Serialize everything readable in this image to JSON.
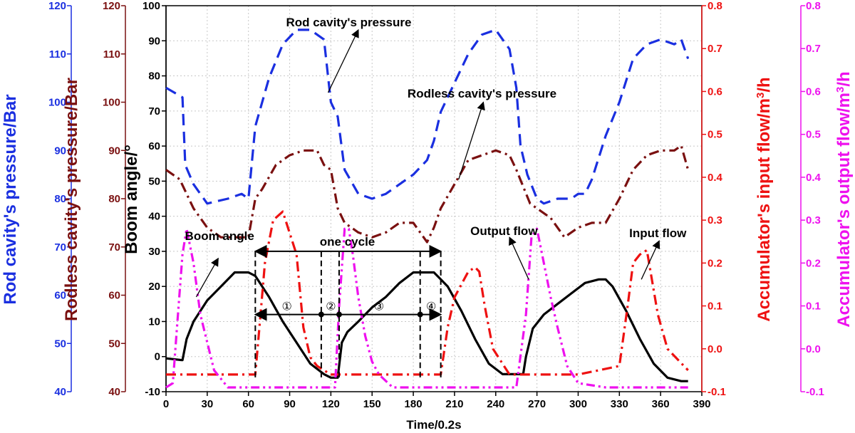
{
  "chart_data": {
    "type": "line",
    "xlabel": "Time/0.2s",
    "xlim": [
      0,
      390
    ],
    "x_ticks": [
      0,
      30,
      60,
      90,
      120,
      150,
      180,
      210,
      240,
      270,
      300,
      330,
      360,
      390
    ],
    "grid": true,
    "axes": {
      "rod_pressure": {
        "label": "Rod cavity's pressure/Bar",
        "ylim": [
          40,
          120
        ],
        "ticks": [
          40,
          50,
          60,
          70,
          80,
          90,
          100,
          110,
          120
        ],
        "color": "#1a2fe0"
      },
      "rodless_pressure": {
        "label": "Rodless cavity's pressure/Bar",
        "ylim": [
          40,
          120
        ],
        "ticks": [
          40,
          50,
          60,
          70,
          80,
          90,
          100,
          110,
          120
        ],
        "color": "#7a1010"
      },
      "boom_angle": {
        "label": "Boom angle/°",
        "ylim": [
          -10,
          100
        ],
        "ticks": [
          -10,
          0,
          10,
          20,
          30,
          40,
          50,
          60,
          70,
          80,
          90,
          100
        ],
        "color": "#000000"
      },
      "input_flow": {
        "label_main": "Accumulator's input flow/m",
        "label_sup": "3",
        "label_end": "/h",
        "ylim": [
          -0.1,
          0.8
        ],
        "ticks": [
          "-0.1",
          "0.0",
          "0.1",
          "0.2",
          "0.3",
          "0.4",
          "0.5",
          "0.6",
          "0.7",
          "0.8"
        ],
        "color": "#ee1111"
      },
      "output_flow": {
        "label_main": "Accumulator's output flow/m",
        "label_sup": "3",
        "label_end": "/h",
        "ylim": [
          -0.1,
          0.8
        ],
        "ticks": [
          "-0.1",
          "0.0",
          "0.1",
          "0.2",
          "0.3",
          "0.4",
          "0.5",
          "0.6",
          "0.7",
          "0.8"
        ],
        "color": "#ee11ee"
      }
    },
    "series": [
      {
        "name": "Rod cavity's pressure",
        "axis": "rod_pressure",
        "style": "dash",
        "x": [
          0,
          12,
          14,
          20,
          30,
          45,
          55,
          60,
          65,
          75,
          85,
          95,
          105,
          115,
          120,
          125,
          130,
          140,
          150,
          160,
          170,
          180,
          190,
          195,
          200,
          210,
          220,
          230,
          240,
          250,
          255,
          258,
          263,
          270,
          275,
          285,
          295,
          300,
          305,
          310,
          320,
          330,
          340,
          350,
          360,
          370,
          375,
          380
        ],
        "y": [
          103,
          101,
          87,
          83,
          79,
          80,
          81,
          80,
          95,
          105,
          112,
          115,
          115,
          113,
          100,
          97,
          86,
          81,
          80,
          81,
          83,
          85,
          88,
          92,
          98,
          104,
          110,
          114,
          115,
          111,
          103,
          91,
          85,
          80,
          79,
          80,
          80,
          81,
          81,
          84,
          93,
          100,
          109,
          112,
          113,
          112,
          113,
          109
        ]
      },
      {
        "name": "Rodless cavity's pressure",
        "axis": "rodless_pressure",
        "style": "dashdot",
        "x": [
          0,
          10,
          15,
          20,
          30,
          40,
          50,
          60,
          65,
          70,
          80,
          90,
          100,
          110,
          115,
          120,
          125,
          130,
          140,
          150,
          160,
          170,
          180,
          190,
          195,
          200,
          210,
          220,
          230,
          240,
          250,
          255,
          265,
          280,
          290,
          300,
          310,
          320,
          330,
          340,
          350,
          360,
          370,
          375,
          380
        ],
        "y": [
          86,
          84,
          81,
          78,
          74,
          72,
          72,
          72,
          80,
          82,
          87,
          89,
          90,
          90,
          87,
          86,
          78,
          75,
          73,
          72,
          73,
          75,
          75,
          71,
          74,
          78,
          83,
          88,
          89,
          90,
          89,
          86,
          79,
          76,
          72,
          74,
          75,
          75,
          80,
          86,
          89,
          90,
          90,
          91,
          86
        ]
      },
      {
        "name": "Boom angle",
        "axis": "boom_angle",
        "style": "solid",
        "x": [
          0,
          12,
          15,
          20,
          30,
          40,
          50,
          55,
          60,
          65,
          75,
          85,
          95,
          105,
          115,
          120,
          125,
          128,
          132,
          140,
          150,
          160,
          170,
          180,
          185,
          195,
          200,
          205,
          215,
          225,
          235,
          245,
          255,
          260,
          262,
          267,
          275,
          285,
          295,
          305,
          315,
          320,
          325,
          335,
          345,
          355,
          365,
          375,
          380
        ],
        "y": [
          -0.5,
          -1,
          5,
          10,
          16,
          20,
          24,
          24,
          24,
          23,
          17,
          10,
          4,
          -2,
          -5,
          -6,
          -6,
          4,
          7,
          10,
          14,
          17,
          21,
          24,
          24,
          24,
          22,
          20,
          13,
          5,
          -2,
          -5,
          -5,
          -5,
          0,
          8,
          12,
          15,
          18,
          21,
          22,
          22,
          20,
          13,
          5,
          -2,
          -6,
          -7,
          -7
        ]
      },
      {
        "name": "Input flow",
        "axis": "input_flow",
        "style": "dashdot",
        "x": [
          0,
          60,
          65,
          68,
          72,
          78,
          85,
          95,
          100,
          105,
          110,
          115,
          120,
          125,
          160,
          198,
          200,
          205,
          210,
          215,
          220,
          225,
          228,
          232,
          238,
          250,
          270,
          300,
          330,
          336,
          340,
          345,
          350,
          358,
          365,
          380
        ],
        "y": [
          -0.06,
          -0.06,
          -0.06,
          0.05,
          0.2,
          0.3,
          0.32,
          0.22,
          0.05,
          -0.02,
          -0.04,
          -0.05,
          -0.06,
          -0.06,
          -0.06,
          -0.06,
          -0.06,
          0.05,
          0.12,
          0.15,
          0.18,
          0.19,
          0.18,
          0.1,
          0.0,
          -0.06,
          -0.06,
          -0.06,
          -0.04,
          0.1,
          0.2,
          0.22,
          0.23,
          0.08,
          0.0,
          -0.05
        ]
      },
      {
        "name": "Output flow",
        "axis": "output_flow",
        "style": "dashdotdot",
        "x": [
          0,
          5,
          8,
          12,
          15,
          20,
          25,
          35,
          45,
          60,
          90,
          120,
          123,
          126,
          130,
          133,
          136,
          140,
          145,
          150,
          155,
          165,
          180,
          210,
          240,
          255,
          262,
          266,
          270,
          275,
          280,
          285,
          292,
          300,
          320,
          350,
          380
        ],
        "y": [
          -0.09,
          -0.08,
          0.05,
          0.22,
          0.28,
          0.2,
          0.08,
          -0.05,
          -0.09,
          -0.09,
          -0.09,
          -0.09,
          -0.09,
          0.1,
          0.28,
          0.28,
          0.22,
          0.12,
          0.03,
          -0.03,
          -0.06,
          -0.09,
          -0.09,
          -0.09,
          -0.09,
          -0.09,
          0.08,
          0.26,
          0.28,
          0.2,
          0.12,
          0.05,
          -0.04,
          -0.08,
          -0.09,
          -0.09,
          -0.09
        ]
      }
    ],
    "annotations": {
      "rod_label": "Rod cavity's pressure",
      "rodless_label": "Rodless cavity's pressure",
      "boom_label": "Boom angle",
      "cycle_label": "one cycle",
      "output_label": "Output flow",
      "input_label": "Input flow",
      "phase_1": "①",
      "phase_2": "②",
      "phase_3": "③",
      "phase_4": "④"
    },
    "cycle_range": [
      65,
      200
    ],
    "phase_boundaries": [
      65,
      113,
      126,
      185,
      200
    ]
  }
}
